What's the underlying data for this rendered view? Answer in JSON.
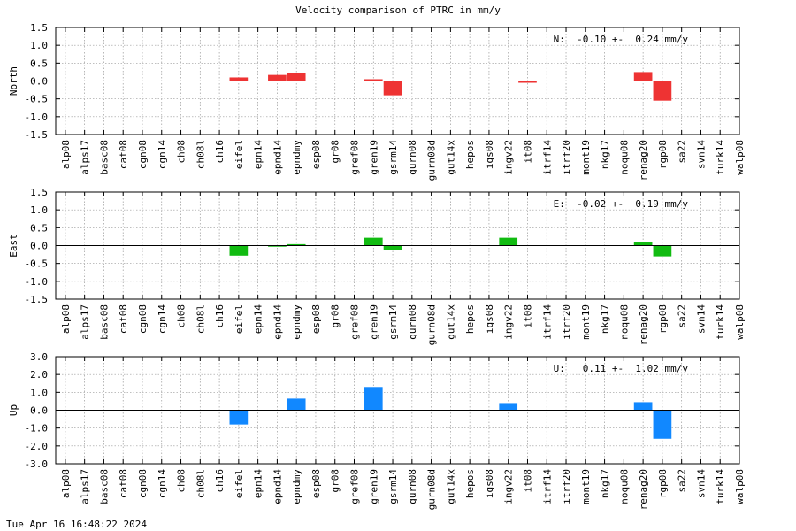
{
  "title": "Velocity comparison of PTRC in mm/y",
  "timestamp": "Tue Apr 16 16:48:22 2024",
  "chart_data": [
    {
      "type": "bar",
      "ylabel": "North",
      "annotation": "N:  -0.10 +-  0.24 mm/y",
      "color": "#ee3333",
      "ylim": [
        -1.5,
        1.5
      ],
      "yticks": [
        -1.5,
        -1.0,
        -0.5,
        0.0,
        0.5,
        1.0,
        1.5
      ],
      "ytick_labels": [
        "-1.5",
        "-1.0",
        "-0.5",
        "0.0",
        "0.5",
        "1.0",
        "1.5"
      ],
      "grid": true,
      "categories": [
        "alp08",
        "alps17",
        "basc08",
        "cat08",
        "cgn08",
        "cgn14",
        "ch08",
        "ch08l",
        "ch16",
        "eifel",
        "epn14",
        "epnd14",
        "epndmy",
        "esp08",
        "gr08",
        "gref08",
        "gren19",
        "gsrm14",
        "gurn08",
        "gurn08d",
        "gut14x",
        "hepos",
        "igs08",
        "ingv22",
        "it08",
        "itrf14",
        "itrf20",
        "mont19",
        "nkg17",
        "noqu08",
        "renag20",
        "rgp08",
        "sa22",
        "svn14",
        "turk14",
        "walp08"
      ],
      "values": [
        0,
        0,
        0,
        0,
        0,
        0,
        0,
        0,
        0,
        0.1,
        0,
        0.17,
        0.22,
        0,
        0,
        0,
        0.05,
        -0.4,
        0,
        0,
        0,
        0,
        0,
        0,
        -0.05,
        0,
        0,
        0,
        0,
        0,
        0.25,
        -0.55,
        0,
        0,
        0,
        0
      ]
    },
    {
      "type": "bar",
      "ylabel": "East",
      "annotation": "E:  -0.02 +-  0.19 mm/y",
      "color": "#11bb11",
      "ylim": [
        -1.5,
        1.5
      ],
      "yticks": [
        -1.5,
        -1.0,
        -0.5,
        0.0,
        0.5,
        1.0,
        1.5
      ],
      "ytick_labels": [
        "-1.5",
        "-1.0",
        "-0.5",
        "0.0",
        "0.5",
        "1.0",
        "1.5"
      ],
      "grid": true,
      "categories": [
        "alp08",
        "alps17",
        "basc08",
        "cat08",
        "cgn08",
        "cgn14",
        "ch08",
        "ch08l",
        "ch16",
        "eifel",
        "epn14",
        "epnd14",
        "epndmy",
        "esp08",
        "gr08",
        "gref08",
        "gren19",
        "gsrm14",
        "gurn08",
        "gurn08d",
        "gut14x",
        "hepos",
        "igs08",
        "ingv22",
        "it08",
        "itrf14",
        "itrf20",
        "mont19",
        "nkg17",
        "noqu08",
        "renag20",
        "rgp08",
        "sa22",
        "svn14",
        "turk14",
        "walp08"
      ],
      "values": [
        0,
        0,
        0,
        0,
        0,
        0,
        0,
        0,
        0,
        -0.28,
        0,
        -0.03,
        0.04,
        0,
        0,
        0,
        0.22,
        -0.13,
        0,
        0,
        0,
        0,
        0,
        0.22,
        0,
        0,
        0,
        0,
        0,
        0,
        0.1,
        -0.3,
        0,
        0,
        0,
        0
      ]
    },
    {
      "type": "bar",
      "ylabel": "Up",
      "annotation": "U:   0.11 +-  1.02 mm/y",
      "color": "#1188ff",
      "ylim": [
        -3.0,
        3.0
      ],
      "yticks": [
        -3.0,
        -2.0,
        -1.0,
        0.0,
        1.0,
        2.0,
        3.0
      ],
      "ytick_labels": [
        "-3.0",
        "-2.0",
        "-1.0",
        "0.0",
        "1.0",
        "2.0",
        "3.0"
      ],
      "grid": true,
      "categories": [
        "alp08",
        "alps17",
        "basc08",
        "cat08",
        "cgn08",
        "cgn14",
        "ch08",
        "ch08l",
        "ch16",
        "eifel",
        "epn14",
        "epnd14",
        "epndmy",
        "esp08",
        "gr08",
        "gref08",
        "gren19",
        "gsrm14",
        "gurn08",
        "gurn08d",
        "gut14x",
        "hepos",
        "igs08",
        "ingv22",
        "it08",
        "itrf14",
        "itrf20",
        "mont19",
        "nkg17",
        "noqu08",
        "renag20",
        "rgp08",
        "sa22",
        "svn14",
        "turk14",
        "walp08"
      ],
      "values": [
        0,
        0,
        0,
        0,
        0,
        0,
        0,
        0,
        0,
        -0.8,
        0,
        0,
        0.65,
        0,
        0,
        0,
        1.3,
        0,
        0,
        0,
        0,
        0,
        0,
        0.4,
        0,
        0,
        0,
        0,
        0,
        0,
        0.45,
        -1.6,
        0,
        0,
        0,
        0
      ]
    }
  ]
}
